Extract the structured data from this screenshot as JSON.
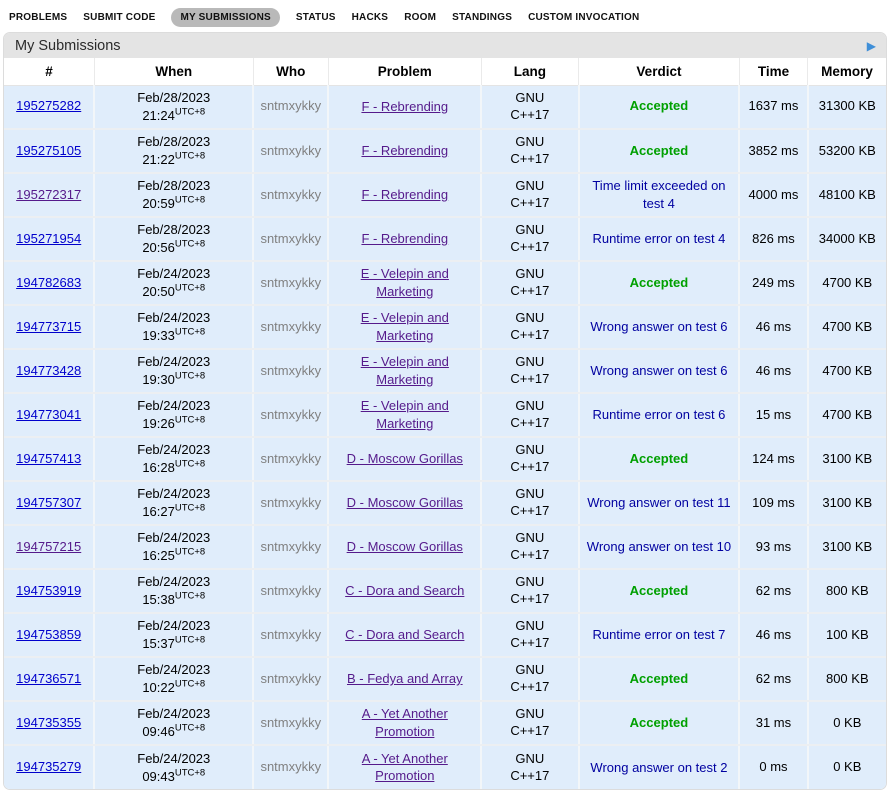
{
  "colors": {
    "pill_gray": "#b9b9b9",
    "caption_gray": "#e4e4e4",
    "arrow_blue": "#3f8fd8",
    "row_bg": "#e0edfb",
    "link_blue": "#0000cc",
    "link_visited": "#551a8b",
    "who_gray": "#808080",
    "accepted_green": "#00a000",
    "verdict_blue": "#0000a0"
  },
  "nav": {
    "items": [
      {
        "label": "PROBLEMS",
        "active": false
      },
      {
        "label": "SUBMIT CODE",
        "active": false
      },
      {
        "label": "MY SUBMISSIONS",
        "active": true
      },
      {
        "label": "STATUS",
        "active": false
      },
      {
        "label": "HACKS",
        "active": false
      },
      {
        "label": "ROOM",
        "active": false
      },
      {
        "label": "STANDINGS",
        "active": false
      },
      {
        "label": "CUSTOM INVOCATION",
        "active": false
      }
    ]
  },
  "page": {
    "title": "My Submissions",
    "expand_arrow": "▶"
  },
  "table": {
    "headers": [
      "#",
      "When",
      "Who",
      "Problem",
      "Lang",
      "Verdict",
      "Time",
      "Memory"
    ],
    "rows": [
      {
        "id": "195275282",
        "id_visited": false,
        "date": "Feb/28/2023",
        "time": "21:24",
        "tz": "UTC+8",
        "who": "sntmxykky",
        "problem": "F - Rebrending",
        "lang": "GNU C++17",
        "verdict": "Accepted",
        "verdict_type": "ok",
        "exec_time": "1637 ms",
        "memory": "31300 KB"
      },
      {
        "id": "195275105",
        "id_visited": false,
        "date": "Feb/28/2023",
        "time": "21:22",
        "tz": "UTC+8",
        "who": "sntmxykky",
        "problem": "F - Rebrending",
        "lang": "GNU C++17",
        "verdict": "Accepted",
        "verdict_type": "ok",
        "exec_time": "3852 ms",
        "memory": "53200 KB"
      },
      {
        "id": "195272317",
        "id_visited": true,
        "date": "Feb/28/2023",
        "time": "20:59",
        "tz": "UTC+8",
        "who": "sntmxykky",
        "problem": "F - Rebrending",
        "lang": "GNU C++17",
        "verdict": "Time limit exceeded on test 4",
        "verdict_type": "fail",
        "exec_time": "4000 ms",
        "memory": "48100 KB"
      },
      {
        "id": "195271954",
        "id_visited": false,
        "date": "Feb/28/2023",
        "time": "20:56",
        "tz": "UTC+8",
        "who": "sntmxykky",
        "problem": "F - Rebrending",
        "lang": "GNU C++17",
        "verdict": "Runtime error on test 4",
        "verdict_type": "fail",
        "exec_time": "826 ms",
        "memory": "34000 KB"
      },
      {
        "id": "194782683",
        "id_visited": false,
        "date": "Feb/24/2023",
        "time": "20:50",
        "tz": "UTC+8",
        "who": "sntmxykky",
        "problem": "E - Velepin and Marketing",
        "lang": "GNU C++17",
        "verdict": "Accepted",
        "verdict_type": "ok",
        "exec_time": "249 ms",
        "memory": "4700 KB"
      },
      {
        "id": "194773715",
        "id_visited": false,
        "date": "Feb/24/2023",
        "time": "19:33",
        "tz": "UTC+8",
        "who": "sntmxykky",
        "problem": "E - Velepin and Marketing",
        "lang": "GNU C++17",
        "verdict": "Wrong answer on test 6",
        "verdict_type": "fail",
        "exec_time": "46 ms",
        "memory": "4700 KB"
      },
      {
        "id": "194773428",
        "id_visited": false,
        "date": "Feb/24/2023",
        "time": "19:30",
        "tz": "UTC+8",
        "who": "sntmxykky",
        "problem": "E - Velepin and Marketing",
        "lang": "GNU C++17",
        "verdict": "Wrong answer on test 6",
        "verdict_type": "fail",
        "exec_time": "46 ms",
        "memory": "4700 KB"
      },
      {
        "id": "194773041",
        "id_visited": false,
        "date": "Feb/24/2023",
        "time": "19:26",
        "tz": "UTC+8",
        "who": "sntmxykky",
        "problem": "E - Velepin and Marketing",
        "lang": "GNU C++17",
        "verdict": "Runtime error on test 6",
        "verdict_type": "fail",
        "exec_time": "15 ms",
        "memory": "4700 KB"
      },
      {
        "id": "194757413",
        "id_visited": false,
        "date": "Feb/24/2023",
        "time": "16:28",
        "tz": "UTC+8",
        "who": "sntmxykky",
        "problem": "D - Moscow Gorillas",
        "lang": "GNU C++17",
        "verdict": "Accepted",
        "verdict_type": "ok",
        "exec_time": "124 ms",
        "memory": "3100 KB"
      },
      {
        "id": "194757307",
        "id_visited": false,
        "date": "Feb/24/2023",
        "time": "16:27",
        "tz": "UTC+8",
        "who": "sntmxykky",
        "problem": "D - Moscow Gorillas",
        "lang": "GNU C++17",
        "verdict": "Wrong answer on test 11",
        "verdict_type": "fail",
        "exec_time": "109 ms",
        "memory": "3100 KB"
      },
      {
        "id": "194757215",
        "id_visited": true,
        "date": "Feb/24/2023",
        "time": "16:25",
        "tz": "UTC+8",
        "who": "sntmxykky",
        "problem": "D - Moscow Gorillas",
        "lang": "GNU C++17",
        "verdict": "Wrong answer on test 10",
        "verdict_type": "fail",
        "exec_time": "93 ms",
        "memory": "3100 KB"
      },
      {
        "id": "194753919",
        "id_visited": false,
        "date": "Feb/24/2023",
        "time": "15:38",
        "tz": "UTC+8",
        "who": "sntmxykky",
        "problem": "C - Dora and Search",
        "lang": "GNU C++17",
        "verdict": "Accepted",
        "verdict_type": "ok",
        "exec_time": "62 ms",
        "memory": "800 KB"
      },
      {
        "id": "194753859",
        "id_visited": false,
        "date": "Feb/24/2023",
        "time": "15:37",
        "tz": "UTC+8",
        "who": "sntmxykky",
        "problem": "C - Dora and Search",
        "lang": "GNU C++17",
        "verdict": "Runtime error on test 7",
        "verdict_type": "fail",
        "exec_time": "46 ms",
        "memory": "100 KB"
      },
      {
        "id": "194736571",
        "id_visited": false,
        "date": "Feb/24/2023",
        "time": "10:22",
        "tz": "UTC+8",
        "who": "sntmxykky",
        "problem": "B - Fedya and Array",
        "lang": "GNU C++17",
        "verdict": "Accepted",
        "verdict_type": "ok",
        "exec_time": "62 ms",
        "memory": "800 KB"
      },
      {
        "id": "194735355",
        "id_visited": false,
        "date": "Feb/24/2023",
        "time": "09:46",
        "tz": "UTC+8",
        "who": "sntmxykky",
        "problem": "A - Yet Another Promotion",
        "lang": "GNU C++17",
        "verdict": "Accepted",
        "verdict_type": "ok",
        "exec_time": "31 ms",
        "memory": "0 KB"
      },
      {
        "id": "194735279",
        "id_visited": false,
        "date": "Feb/24/2023",
        "time": "09:43",
        "tz": "UTC+8",
        "who": "sntmxykky",
        "problem": "A - Yet Another Promotion",
        "lang": "GNU C++17",
        "verdict": "Wrong answer on test 2",
        "verdict_type": "fail",
        "exec_time": "0 ms",
        "memory": "0 KB"
      }
    ]
  }
}
